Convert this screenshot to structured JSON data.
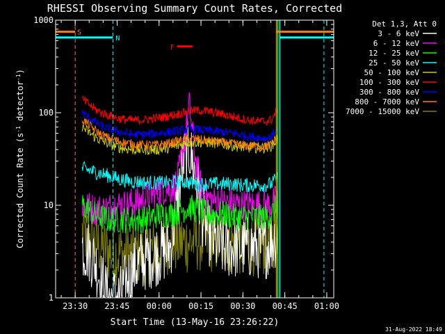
{
  "chart_data": {
    "type": "line",
    "title": "RHESSI Observing Summary Count Rates, Corrected",
    "xlabel": "Start Time (13-May-16 23:26:22)",
    "ylabel": "Corrected Count Rate (s⁻¹ detector⁻¹)",
    "ylabel_main": "Corrected Count Rate (s",
    "ylabel_sup1": "-1",
    "ylabel_mid": " detector",
    "ylabel_sup2": "-1",
    "ylabel_end": ")",
    "y_scale": "log",
    "ylim": [
      1,
      1000
    ],
    "xlim_minutes": [
      -1.37,
      53.23
    ],
    "x_ticks": [
      {
        "label": "23:30",
        "minute": 0
      },
      {
        "label": "23:45",
        "minute": 15
      },
      {
        "label": "00:00",
        "minute": 30
      },
      {
        "label": "00:15",
        "minute": 45
      },
      {
        "label": "00:30",
        "minute": 60
      },
      {
        "label": "00:45",
        "minute": 75
      },
      {
        "label": "01:00",
        "minute": 90
      }
    ],
    "y_ticks": [
      {
        "label": "1",
        "value": 1
      },
      {
        "label": "10",
        "value": 10
      },
      {
        "label": "100",
        "value": 100
      },
      {
        "label": "1000",
        "value": 1000
      }
    ],
    "legend_header": "Det 1,3, Att 0",
    "legend_placement": "top-right outside",
    "series": [
      {
        "name": "3 - 6 keV",
        "color": "#ffffff",
        "base": [
          3.5,
          3.2,
          2.5,
          1.5,
          1.0,
          1.0,
          1.0,
          1.5,
          2.0,
          2.4,
          2.6,
          2.8,
          3.0,
          3.2,
          3.5,
          10,
          30,
          40,
          20,
          8,
          5,
          4,
          3.5,
          3.5,
          3.5,
          3.5,
          3.5,
          3.5,
          3.5,
          3.5,
          4,
          5
        ],
        "noise": 0.35
      },
      {
        "name": "6 - 12 keV",
        "color": "#ff00ff",
        "base": [
          10,
          9.5,
          9,
          9,
          9,
          10,
          10,
          10,
          10.5,
          11,
          12,
          13,
          14,
          15,
          15,
          17,
          40,
          120,
          30,
          14,
          12,
          11,
          11,
          10.5,
          10.5,
          10,
          10,
          10,
          10,
          10,
          10,
          12
        ],
        "noise": 0.18
      },
      {
        "name": "12 - 25 keV",
        "color": "#00ff00",
        "base": [
          10,
          9,
          8,
          7.5,
          7,
          7,
          7,
          7,
          7,
          7,
          7,
          7.5,
          8,
          8,
          8,
          8.5,
          9,
          9.5,
          9,
          8.5,
          8,
          8,
          8,
          8,
          7.5,
          7.5,
          7.5,
          7.5,
          7.5,
          7.5,
          8,
          10
        ],
        "noise": 0.15
      },
      {
        "name": "25 - 50 keV",
        "color": "#00ffff",
        "base": [
          25,
          24,
          23,
          22,
          21,
          20,
          19,
          18.5,
          18,
          18,
          17.5,
          17.5,
          17.5,
          17.5,
          17.5,
          18,
          18,
          17.5,
          17,
          17,
          17,
          17,
          17,
          17,
          17,
          16.5,
          16.5,
          16.5,
          16.5,
          16.5,
          17,
          20
        ],
        "noise": 0.08
      },
      {
        "name": "50 - 100 keV",
        "color": "#cccc00",
        "base": [
          70,
          62,
          55,
          50,
          47,
          44,
          42,
          41,
          40,
          40,
          40,
          40,
          40,
          41,
          42,
          44,
          46,
          48,
          48,
          48,
          48,
          47,
          46,
          45,
          44,
          43,
          42,
          42,
          42,
          42,
          44,
          52
        ],
        "noise": 0.06
      },
      {
        "name": "100 - 300 keV",
        "color": "#ff0000",
        "base": [
          140,
          125,
          110,
          100,
          95,
          90,
          86,
          84,
          83,
          83,
          84,
          86,
          88,
          90,
          93,
          96,
          100,
          104,
          106,
          105,
          103,
          100,
          97,
          94,
          90,
          87,
          84,
          82,
          81,
          80,
          84,
          110
        ],
        "noise": 0.05
      },
      {
        "name": "300 - 800 keV",
        "color": "#0000ff",
        "base": [
          100,
          90,
          80,
          72,
          68,
          65,
          62,
          60,
          58,
          58,
          58,
          59,
          60,
          61,
          62,
          64,
          65,
          66,
          66,
          65,
          64,
          63,
          62,
          61,
          60,
          58,
          56,
          55,
          54,
          53,
          55,
          72
        ],
        "noise": 0.05
      },
      {
        "name": "800 - 7000 keV",
        "color": "#ff8000",
        "base": [
          85,
          75,
          65,
          58,
          54,
          51,
          49,
          47,
          46,
          45,
          45,
          45,
          45,
          46,
          47,
          49,
          51,
          52,
          52,
          51,
          50,
          49,
          48,
          47,
          46,
          45,
          44,
          44,
          43,
          43,
          45,
          58
        ],
        "noise": 0.05
      },
      {
        "name": "7000 - 15000 keV",
        "color": "#808000",
        "base": [
          5,
          4.5,
          4,
          3.5,
          3.2,
          3.0,
          3.0,
          3.0,
          3.0,
          3.0,
          3.0,
          3.2,
          3.5,
          3.8,
          4.0,
          4.0,
          4.0,
          4.0,
          4.2,
          4.2,
          4.2,
          4.0,
          4.0,
          4.0,
          4.0,
          3.8,
          3.8,
          3.8,
          3.8,
          3.8,
          4,
          6
        ],
        "noise": 0.35
      }
    ],
    "marker_lines": [
      {
        "minute": 2.5,
        "color": "#ff8000",
        "dashed": true
      },
      {
        "minute": 16.0,
        "color": "#00ffff",
        "dashed": true
      },
      {
        "minute": 74.5,
        "color": "#ff8000",
        "dashed": false
      },
      {
        "minute": 75.0,
        "color": "#00ff00",
        "dashed": false
      },
      {
        "minute": 75.7,
        "color": "#00ffff",
        "dashed": false
      },
      {
        "minute": 91.5,
        "color": "#00ffff",
        "dashed": true
      }
    ],
    "bars": [
      {
        "label": "S",
        "color": "#ff8000",
        "y_value": 750,
        "from": -4.5,
        "to": 2.5,
        "label_at": 3.2
      },
      {
        "label": "N",
        "color": "#00ffff",
        "y_value": 650,
        "from": -4.5,
        "to": 16.0,
        "label_at": 17.0
      },
      {
        "label": "",
        "color": "#ff8000",
        "y_value": 750,
        "from": 74.5,
        "to": 95.0,
        "label_at": null
      },
      {
        "label": "",
        "color": "#00ffff",
        "y_value": 650,
        "from": 75.7,
        "to": 95.0,
        "label_at": null
      },
      {
        "label": "F",
        "color": "#ff0000",
        "y_value": 520,
        "from": 39.0,
        "to": 44.5,
        "label_at": 36.5
      }
    ],
    "x_minutes_range": [
      -4.5,
      95.0
    ],
    "series_x_range": [
      5.0,
      75.0
    ]
  },
  "footer": {
    "timestamp": "31-Aug-2022 18:49"
  }
}
